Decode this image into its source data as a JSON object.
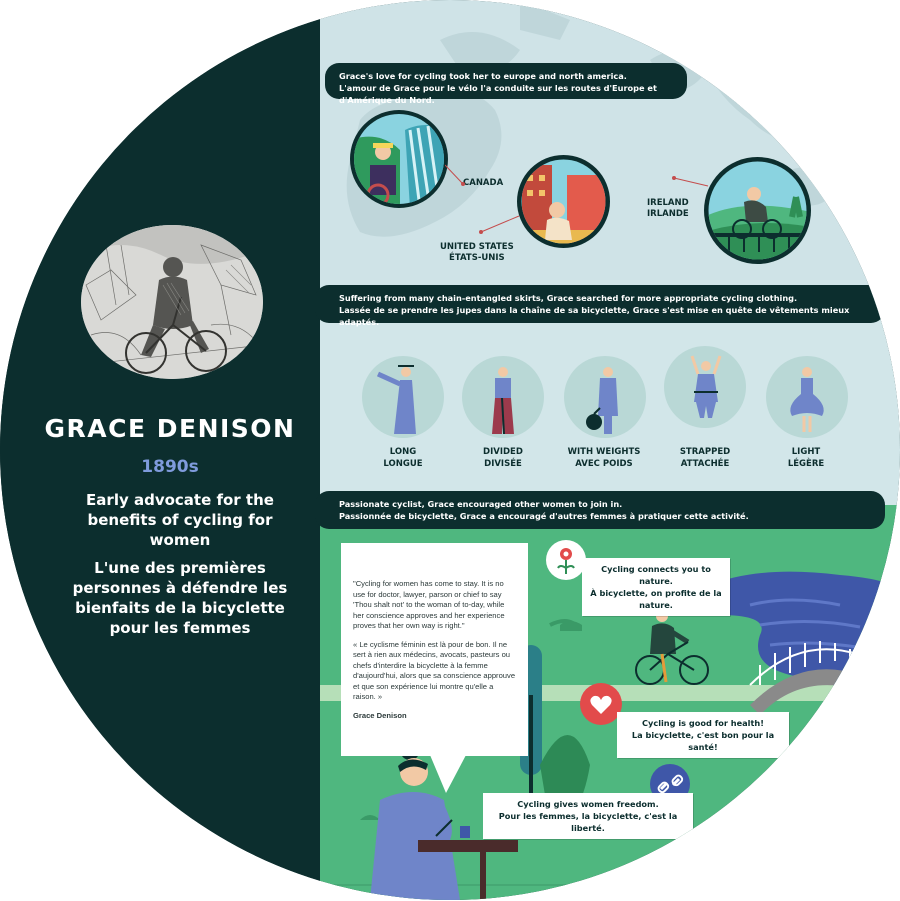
{
  "profile": {
    "name": "GRACE DENISON",
    "era": "1890s",
    "description_en": "Early advocate for the benefits of cycling for women",
    "description_fr": "L'une des premières personnes à défendre les bienfaits de la bicyclette pour les femmes"
  },
  "travel": {
    "banner_en": "Grace's love for cycling took her to europe and north america.",
    "banner_fr": "L'amour de Grace pour le vélo l'a conduite sur les routes d'Europe et d'Amérique du Nord.",
    "canada": "CANADA",
    "us_en": "UNITED STATES",
    "us_fr": "ÉTATS-UNIS",
    "ireland_en": "IRELAND",
    "ireland_fr": "IRLANDE"
  },
  "clothing": {
    "banner_en": "Suffering from many chain-entangled skirts, Grace searched for more appropriate cycling clothing.",
    "banner_fr": "Lassée de se prendre les jupes dans la chaîne de sa bicyclette, Grace s'est mise en quête de vêtements mieux adaptés.",
    "items": [
      {
        "en": "LONG",
        "fr": "LONGUE"
      },
      {
        "en": "DIVIDED",
        "fr": "DIVISÉE"
      },
      {
        "en": "WITH WEIGHTS",
        "fr": "AVEC POIDS"
      },
      {
        "en": "STRAPPED",
        "fr": "ATTACHÉE"
      },
      {
        "en": "LIGHT",
        "fr": "LÉGÈRE"
      }
    ]
  },
  "encourage": {
    "banner_en": "Passionate cyclist, Grace encouraged other women to join in.",
    "banner_fr": "Passionnée de bicyclette, Grace a encouragé d'autres femmes à pratiquer cette activité.",
    "quote_en": "\"Cycling for women has come to stay. It is no use for doctor, lawyer, parson or chief to say 'Thou shalt not' to the woman of to-day, while her conscience approves and her experience proves that her own way is right.\"",
    "quote_fr": "« Le cyclisme féminin est là pour de bon. Il ne sert à rien aux médecins, avocats, pasteurs ou chefs d'interdire la bicyclette à la femme d'aujourd'hui, alors que sa conscience approuve et que son expérience lui montre qu'elle a raison. »",
    "quote_author": "Grace Denison",
    "nature_en": "Cycling connects you to nature.",
    "nature_fr": "À bicyclette, on profite de la nature.",
    "health_en": "Cycling is good for health!",
    "health_fr": "La bicyclette, c'est bon pour la santé!",
    "freedom_en": "Cycling gives women freedom.",
    "freedom_fr": "Pour les femmes, la bicyclette, c'est la liberté."
  },
  "colors": {
    "dark_teal": "#0c2e2e",
    "map_blue": "#cfe3e7",
    "grass_green": "#4fb77f",
    "dress_blue": "#6f85c9",
    "river_blue": "#3f57a8",
    "heart_red": "#e24b4b"
  }
}
